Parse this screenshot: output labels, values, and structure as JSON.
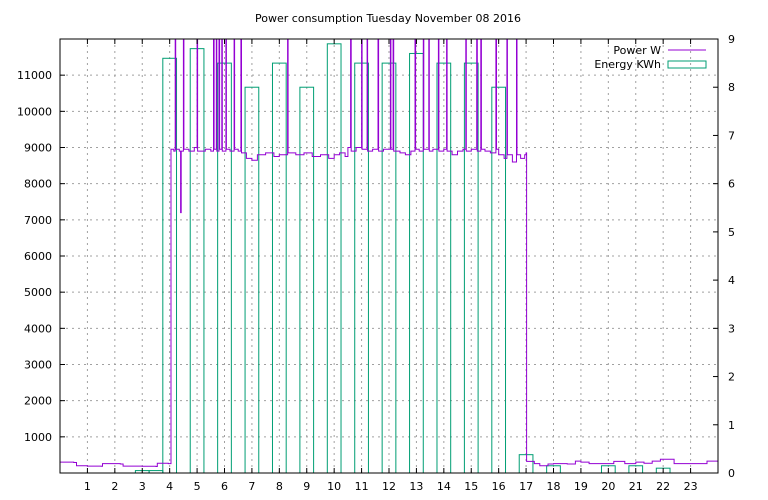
{
  "chart_data": {
    "type": "bar",
    "title": "Power consumption Tuesday November 08 2016",
    "xlabel": "",
    "ylabel": "",
    "y2label": "",
    "xlim": [
      0,
      24
    ],
    "ylim": [
      0,
      12000
    ],
    "y2lim": [
      0,
      9
    ],
    "x_ticks": [
      "1",
      "2",
      "3",
      "4",
      "5",
      "6",
      "7",
      "8",
      "9",
      "10",
      "11",
      "12",
      "13",
      "14",
      "15",
      "16",
      "17",
      "18",
      "19",
      "20",
      "21",
      "22",
      "23"
    ],
    "y_ticks": [
      "1000",
      "2000",
      "3000",
      "4000",
      "5000",
      "6000",
      "7000",
      "8000",
      "9000",
      "10000",
      "11000"
    ],
    "y2_ticks": [
      "0",
      "1",
      "2",
      "3",
      "4",
      "5",
      "6",
      "7",
      "8",
      "9"
    ],
    "grid": true,
    "legend_placement": "top-right",
    "series": [
      {
        "name": "Power W",
        "type": "line",
        "axis": "y",
        "color": "#9400d3",
        "points": [
          [
            0.0,
            300
          ],
          [
            0.5,
            290
          ],
          [
            0.6,
            200
          ],
          [
            1.0,
            190
          ],
          [
            1.5,
            185
          ],
          [
            1.55,
            260
          ],
          [
            2.0,
            260
          ],
          [
            2.2,
            250
          ],
          [
            2.3,
            190
          ],
          [
            3.0,
            185
          ],
          [
            3.5,
            180
          ],
          [
            3.55,
            270
          ],
          [
            3.8,
            270
          ],
          [
            3.95,
            260
          ],
          [
            4.0,
            260
          ],
          [
            4.05,
            8950
          ],
          [
            4.15,
            8900
          ],
          [
            4.2,
            12000
          ],
          [
            4.22,
            8950
          ],
          [
            4.35,
            8900
          ],
          [
            4.4,
            7200
          ],
          [
            4.42,
            8900
          ],
          [
            4.5,
            12000
          ],
          [
            4.52,
            8950
          ],
          [
            4.7,
            8900
          ],
          [
            4.9,
            9000
          ],
          [
            5.0,
            12000
          ],
          [
            5.02,
            8900
          ],
          [
            5.3,
            8950
          ],
          [
            5.5,
            8900
          ],
          [
            5.6,
            12000
          ],
          [
            5.62,
            8950
          ],
          [
            5.7,
            12000
          ],
          [
            5.72,
            8900
          ],
          [
            5.8,
            12000
          ],
          [
            5.82,
            8950
          ],
          [
            5.9,
            12000
          ],
          [
            5.92,
            8900
          ],
          [
            6.05,
            12000
          ],
          [
            6.07,
            8950
          ],
          [
            6.2,
            8900
          ],
          [
            6.35,
            12000
          ],
          [
            6.37,
            8950
          ],
          [
            6.5,
            8900
          ],
          [
            6.6,
            12000
          ],
          [
            6.62,
            8850
          ],
          [
            6.8,
            8700
          ],
          [
            7.0,
            8650
          ],
          [
            7.2,
            8800
          ],
          [
            7.5,
            8850
          ],
          [
            7.8,
            8750
          ],
          [
            8.0,
            8800
          ],
          [
            8.3,
            12000
          ],
          [
            8.32,
            8850
          ],
          [
            8.6,
            8800
          ],
          [
            8.9,
            8850
          ],
          [
            9.2,
            8750
          ],
          [
            9.5,
            8800
          ],
          [
            9.8,
            8700
          ],
          [
            10.0,
            8800
          ],
          [
            10.2,
            8850
          ],
          [
            10.4,
            8750
          ],
          [
            10.5,
            9000
          ],
          [
            10.6,
            12000
          ],
          [
            10.62,
            8900
          ],
          [
            10.8,
            9000
          ],
          [
            11.0,
            12000
          ],
          [
            11.02,
            8950
          ],
          [
            11.2,
            12000
          ],
          [
            11.22,
            8900
          ],
          [
            11.4,
            8950
          ],
          [
            11.6,
            12000
          ],
          [
            11.62,
            8900
          ],
          [
            11.8,
            8950
          ],
          [
            12.05,
            12000
          ],
          [
            12.07,
            8950
          ],
          [
            12.15,
            12000
          ],
          [
            12.17,
            8900
          ],
          [
            12.4,
            8850
          ],
          [
            12.6,
            8800
          ],
          [
            12.8,
            8900
          ],
          [
            12.95,
            12000
          ],
          [
            12.97,
            8950
          ],
          [
            13.1,
            8900
          ],
          [
            13.25,
            12000
          ],
          [
            13.27,
            8950
          ],
          [
            13.45,
            12000
          ],
          [
            13.47,
            8900
          ],
          [
            13.6,
            8950
          ],
          [
            13.8,
            12000
          ],
          [
            13.82,
            8900
          ],
          [
            14.0,
            8950
          ],
          [
            14.1,
            12000
          ],
          [
            14.12,
            8900
          ],
          [
            14.3,
            8800
          ],
          [
            14.5,
            8900
          ],
          [
            14.7,
            8950
          ],
          [
            14.8,
            12000
          ],
          [
            14.82,
            8900
          ],
          [
            15.0,
            8950
          ],
          [
            15.2,
            12000
          ],
          [
            15.22,
            8900
          ],
          [
            15.35,
            12000
          ],
          [
            15.37,
            8950
          ],
          [
            15.5,
            8900
          ],
          [
            15.7,
            8850
          ],
          [
            15.9,
            12000
          ],
          [
            15.92,
            8950
          ],
          [
            16.0,
            8800
          ],
          [
            16.2,
            8700
          ],
          [
            16.3,
            12000
          ],
          [
            16.32,
            8800
          ],
          [
            16.5,
            8600
          ],
          [
            16.65,
            12000
          ],
          [
            16.67,
            8800
          ],
          [
            16.8,
            8700
          ],
          [
            16.95,
            8800
          ],
          [
            17.0,
            8850
          ],
          [
            17.02,
            320
          ],
          [
            17.3,
            260
          ],
          [
            17.5,
            200
          ],
          [
            17.8,
            250
          ],
          [
            18.0,
            260
          ],
          [
            18.5,
            250
          ],
          [
            18.8,
            330
          ],
          [
            19.0,
            300
          ],
          [
            19.3,
            260
          ],
          [
            19.8,
            260
          ],
          [
            20.2,
            320
          ],
          [
            20.6,
            260
          ],
          [
            21.0,
            300
          ],
          [
            21.3,
            270
          ],
          [
            21.6,
            330
          ],
          [
            21.9,
            380
          ],
          [
            22.2,
            380
          ],
          [
            22.4,
            260
          ],
          [
            23.0,
            260
          ],
          [
            23.5,
            260
          ],
          [
            23.6,
            330
          ],
          [
            24.0,
            330
          ]
        ]
      },
      {
        "name": "Energy KWh",
        "type": "bar",
        "axis": "y2",
        "color": "#009e73",
        "bar_width": 0.5,
        "bars": [
          [
            3.0,
            0.05
          ],
          [
            3.5,
            0.05
          ],
          [
            4.0,
            8.6
          ],
          [
            4.5,
            0.0
          ],
          [
            5.0,
            8.8
          ],
          [
            5.5,
            0.0
          ],
          [
            6.0,
            8.5
          ],
          [
            6.5,
            0.0
          ],
          [
            7.0,
            8.0
          ],
          [
            7.5,
            0.0
          ],
          [
            8.0,
            8.5
          ],
          [
            8.5,
            0.0
          ],
          [
            9.0,
            8.0
          ],
          [
            9.5,
            0.0
          ],
          [
            10.0,
            8.9
          ],
          [
            10.5,
            0.0
          ],
          [
            11.0,
            8.5
          ],
          [
            11.5,
            0.0
          ],
          [
            12.0,
            8.5
          ],
          [
            12.5,
            0.0
          ],
          [
            13.0,
            8.7
          ],
          [
            13.5,
            0.0
          ],
          [
            14.0,
            8.5
          ],
          [
            14.5,
            0.0
          ],
          [
            15.0,
            8.5
          ],
          [
            15.5,
            0.0
          ],
          [
            16.0,
            8.0
          ],
          [
            16.5,
            0.0
          ],
          [
            17.0,
            0.38
          ],
          [
            17.5,
            0.0
          ],
          [
            18.0,
            0.15
          ],
          [
            20.0,
            0.15
          ],
          [
            21.0,
            0.15
          ],
          [
            22.0,
            0.1
          ]
        ]
      }
    ]
  }
}
